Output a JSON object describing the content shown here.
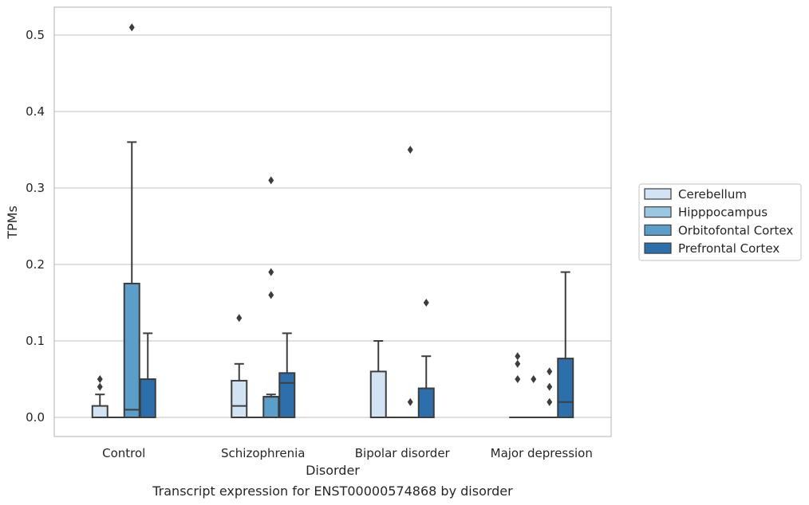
{
  "chart_data": {
    "type": "boxplot",
    "caption": "Transcript expression for ENST00000574868 by disorder",
    "xlabel": "Disorder",
    "ylabel": "TPMs",
    "ylim": [
      -0.025,
      0.538
    ],
    "yticks": [
      0.0,
      0.1,
      0.2,
      0.3,
      0.4,
      0.5
    ],
    "ytick_labels": [
      "0.0",
      "0.1",
      "0.2",
      "0.3",
      "0.4",
      "0.5"
    ],
    "grid": "horizontal",
    "legend_position": "right",
    "categories": [
      "Control",
      "Schizophrenia",
      "Bipolar disorder",
      "Major depression"
    ],
    "series": [
      {
        "name": "Cerebellum",
        "color": "#d2e3f3",
        "boxes": [
          {
            "q1": 0.0,
            "median": 0.0,
            "q3": 0.015,
            "whisker_low": 0.0,
            "whisker_high": 0.03,
            "outliers": [
              0.04,
              0.05
            ]
          },
          {
            "q1": 0.0,
            "median": 0.015,
            "q3": 0.048,
            "whisker_low": 0.0,
            "whisker_high": 0.07,
            "outliers": [
              0.13
            ]
          },
          {
            "q1": 0.0,
            "median": 0.0,
            "q3": 0.06,
            "whisker_low": 0.0,
            "whisker_high": 0.1,
            "outliers": []
          },
          {
            "q1": 0.0,
            "median": 0.0,
            "q3": 0.0,
            "whisker_low": 0.0,
            "whisker_high": 0.0,
            "outliers": [
              0.05,
              0.07,
              0.08
            ]
          }
        ]
      },
      {
        "name": "Hipppocampus",
        "color": "#9ac8e0",
        "boxes": [
          {
            "q1": 0.0,
            "median": 0.0,
            "q3": 0.0,
            "whisker_low": 0.0,
            "whisker_high": 0.0,
            "outliers": []
          },
          {
            "q1": 0.0,
            "median": 0.0,
            "q3": 0.0,
            "whisker_low": 0.0,
            "whisker_high": 0.0,
            "outliers": []
          },
          {
            "q1": 0.0,
            "median": 0.0,
            "q3": 0.0,
            "whisker_low": 0.0,
            "whisker_high": 0.0,
            "outliers": []
          },
          {
            "q1": 0.0,
            "median": 0.0,
            "q3": 0.0,
            "whisker_low": 0.0,
            "whisker_high": 0.0,
            "outliers": [
              0.05
            ]
          }
        ]
      },
      {
        "name": "Orbitofontal Cortex",
        "color": "#5a9ec9",
        "boxes": [
          {
            "q1": 0.0,
            "median": 0.01,
            "q3": 0.175,
            "whisker_low": 0.0,
            "whisker_high": 0.36,
            "outliers": [
              0.51
            ]
          },
          {
            "q1": 0.0,
            "median": 0.027,
            "q3": 0.027,
            "whisker_low": 0.0,
            "whisker_high": 0.03,
            "outliers": [
              0.16,
              0.19,
              0.31
            ]
          },
          {
            "q1": 0.0,
            "median": 0.0,
            "q3": 0.0,
            "whisker_low": 0.0,
            "whisker_high": 0.0,
            "outliers": [
              0.02,
              0.35
            ]
          },
          {
            "q1": 0.0,
            "median": 0.0,
            "q3": 0.0,
            "whisker_low": 0.0,
            "whisker_high": 0.0,
            "outliers": [
              0.02,
              0.04,
              0.06
            ]
          }
        ]
      },
      {
        "name": "Prefrontal Cortex",
        "color": "#2c6fab",
        "boxes": [
          {
            "q1": 0.0,
            "median": 0.0,
            "q3": 0.05,
            "whisker_low": 0.0,
            "whisker_high": 0.11,
            "outliers": []
          },
          {
            "q1": 0.0,
            "median": 0.045,
            "q3": 0.058,
            "whisker_low": 0.0,
            "whisker_high": 0.11,
            "outliers": []
          },
          {
            "q1": 0.0,
            "median": 0.0,
            "q3": 0.038,
            "whisker_low": 0.0,
            "whisker_high": 0.08,
            "outliers": [
              0.15
            ]
          },
          {
            "q1": 0.0,
            "median": 0.02,
            "q3": 0.077,
            "whisker_low": 0.0,
            "whisker_high": 0.19,
            "outliers": []
          }
        ]
      }
    ]
  }
}
